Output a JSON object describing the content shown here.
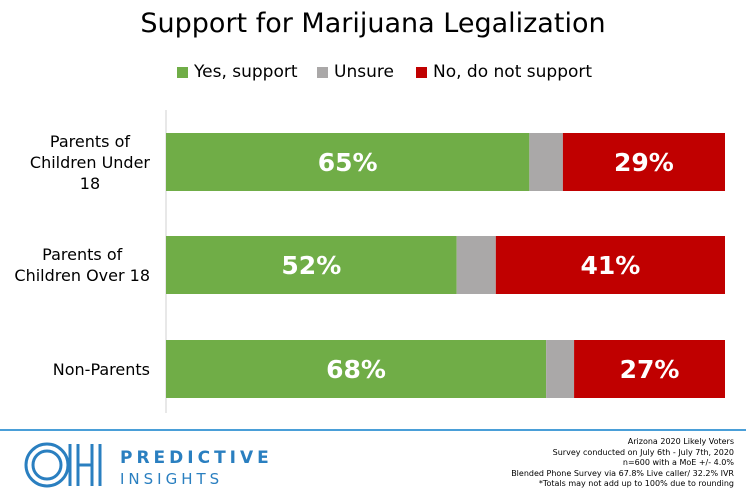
{
  "title": "Support for Marijuana Legalization",
  "legend": [
    {
      "label": "Yes, support",
      "color": "#70ad47"
    },
    {
      "label": "Unsure",
      "color": "#aaa8a8"
    },
    {
      "label": "No, do not support",
      "color": "#c00000"
    }
  ],
  "chart_data": {
    "type": "bar",
    "orientation": "horizontal",
    "stacked": true,
    "title": "Support for Marijuana Legalization",
    "categories": [
      "Parents of Children Under 18",
      "Parents of Children Over 18",
      "Non-Parents"
    ],
    "category_label_lines": [
      [
        "Parents of",
        "Children Under",
        "18"
      ],
      [
        "Parents of",
        "Children Over 18"
      ],
      [
        "Non-Parents"
      ]
    ],
    "series": [
      {
        "name": "Yes, support",
        "values": [
          65,
          52,
          68
        ],
        "labels": [
          "65%",
          "52%",
          "68%"
        ],
        "color": "#70ad47"
      },
      {
        "name": "Unsure",
        "values": [
          6,
          7,
          5
        ],
        "labels": [
          "",
          "",
          ""
        ],
        "color": "#aaa8a8"
      },
      {
        "name": "No, do not support",
        "values": [
          29,
          41,
          27
        ],
        "labels": [
          "29%",
          "41%",
          "27%"
        ],
        "color": "#c00000"
      }
    ],
    "xlim": [
      0,
      100
    ],
    "legend_position": "top",
    "grid": false
  },
  "footer": {
    "brand_line1": "PREDICTIVE",
    "brand_line2": "INSIGHTS",
    "logo_text": "OH",
    "notes": [
      "Arizona 2020 Likely Voters",
      "Survey conducted on July 6th - July 7th, 2020",
      "n=600 with a MoE +/- 4.0%",
      "Blended Phone Survey via 67.8% Live caller/ 32.2% IVR",
      "*Totals may not add up to 100% due to rounding"
    ]
  }
}
